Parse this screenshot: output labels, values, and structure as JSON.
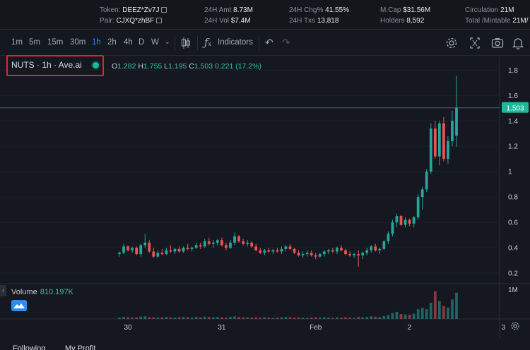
{
  "stats": {
    "token_label": "Token:",
    "token_value": "DEEZ*Zv7J",
    "pair_label": "Pair:",
    "pair_value": "CJXQ*zhBF",
    "amt_label": "24H Amt",
    "amt_value": "8.73M",
    "vol_label": "24H Vol",
    "vol_value": "$7.4M",
    "chg_label": "24H Chg%",
    "chg_value": "41.55%",
    "txs_label": "24H Txs",
    "txs_value": "13,818",
    "mcap_label": "M.Cap",
    "mcap_value": "$31.56M",
    "holders_label": "Holders",
    "holders_value": "8,592",
    "circ_label": "Circulation",
    "circ_value": "21M",
    "total_label": "Total /Mintable",
    "total_value": "21M/"
  },
  "toolbar": {
    "timeframes": [
      "1m",
      "5m",
      "15m",
      "30m",
      "1h",
      "2h",
      "4h",
      "D",
      "W"
    ],
    "active_timeframe": "1h",
    "indicators_label": "Indicators"
  },
  "legend": {
    "title": "NUTS · 1h · Ave.ai",
    "open_label": "O",
    "open": "1.282",
    "high_label": "H",
    "high": "1.755",
    "low_label": "L",
    "low": "1.195",
    "close_label": "C",
    "close": "1.503",
    "change": "0.221 (17.2%)"
  },
  "volume": {
    "label": "Volume",
    "value": "810.197K"
  },
  "tabs": {
    "following": "Following",
    "my_profit": "My Profit"
  },
  "colors": {
    "up": "#26a69a",
    "down": "#ef5350",
    "price_tag": "#1fb89a",
    "accent": "#2f8cf0"
  },
  "chart_data": {
    "type": "candlestick",
    "x_ticks": [
      "30",
      "31",
      "Feb",
      "2",
      "3"
    ],
    "y_ticks": [
      "0.2",
      "0.4",
      "0.6",
      "0.8",
      "1",
      "1.2",
      "1.4",
      "1.6",
      "1.8"
    ],
    "ylim": [
      0.15,
      1.88
    ],
    "last_price": "1.503",
    "volume_ticks": [
      "1M"
    ],
    "candles": [
      [
        0.35,
        0.37,
        0.33,
        0.36
      ],
      [
        0.36,
        0.43,
        0.35,
        0.41
      ],
      [
        0.41,
        0.42,
        0.37,
        0.38
      ],
      [
        0.38,
        0.41,
        0.36,
        0.4
      ],
      [
        0.4,
        0.41,
        0.34,
        0.35
      ],
      [
        0.35,
        0.43,
        0.33,
        0.42
      ],
      [
        0.42,
        0.51,
        0.4,
        0.44
      ],
      [
        0.44,
        0.46,
        0.36,
        0.37
      ],
      [
        0.37,
        0.4,
        0.32,
        0.33
      ],
      [
        0.33,
        0.38,
        0.32,
        0.36
      ],
      [
        0.36,
        0.39,
        0.34,
        0.35
      ],
      [
        0.35,
        0.4,
        0.34,
        0.38
      ],
      [
        0.38,
        0.42,
        0.36,
        0.37
      ],
      [
        0.37,
        0.4,
        0.35,
        0.39
      ],
      [
        0.39,
        0.41,
        0.36,
        0.37
      ],
      [
        0.37,
        0.41,
        0.36,
        0.4
      ],
      [
        0.4,
        0.43,
        0.38,
        0.39
      ],
      [
        0.39,
        0.41,
        0.37,
        0.4
      ],
      [
        0.4,
        0.44,
        0.39,
        0.42
      ],
      [
        0.42,
        0.44,
        0.39,
        0.41
      ],
      [
        0.41,
        0.47,
        0.4,
        0.45
      ],
      [
        0.45,
        0.48,
        0.42,
        0.43
      ],
      [
        0.43,
        0.46,
        0.4,
        0.44
      ],
      [
        0.44,
        0.47,
        0.42,
        0.46
      ],
      [
        0.46,
        0.48,
        0.41,
        0.42
      ],
      [
        0.42,
        0.44,
        0.38,
        0.4
      ],
      [
        0.4,
        0.46,
        0.39,
        0.44
      ],
      [
        0.44,
        0.52,
        0.42,
        0.49
      ],
      [
        0.49,
        0.5,
        0.44,
        0.45
      ],
      [
        0.45,
        0.47,
        0.42,
        0.43
      ],
      [
        0.43,
        0.46,
        0.41,
        0.44
      ],
      [
        0.44,
        0.45,
        0.4,
        0.41
      ],
      [
        0.41,
        0.43,
        0.37,
        0.38
      ],
      [
        0.38,
        0.4,
        0.35,
        0.36
      ],
      [
        0.36,
        0.39,
        0.34,
        0.38
      ],
      [
        0.38,
        0.4,
        0.36,
        0.37
      ],
      [
        0.37,
        0.39,
        0.35,
        0.38
      ],
      [
        0.38,
        0.4,
        0.36,
        0.37
      ],
      [
        0.37,
        0.41,
        0.35,
        0.39
      ],
      [
        0.39,
        0.42,
        0.37,
        0.41
      ],
      [
        0.41,
        0.43,
        0.38,
        0.39
      ],
      [
        0.39,
        0.4,
        0.35,
        0.36
      ],
      [
        0.36,
        0.38,
        0.33,
        0.34
      ],
      [
        0.34,
        0.37,
        0.32,
        0.35
      ],
      [
        0.35,
        0.38,
        0.33,
        0.36
      ],
      [
        0.36,
        0.38,
        0.33,
        0.34
      ],
      [
        0.34,
        0.36,
        0.31,
        0.33
      ],
      [
        0.33,
        0.36,
        0.32,
        0.35
      ],
      [
        0.35,
        0.38,
        0.33,
        0.37
      ],
      [
        0.37,
        0.39,
        0.35,
        0.38
      ],
      [
        0.38,
        0.4,
        0.36,
        0.37
      ],
      [
        0.37,
        0.41,
        0.35,
        0.4
      ],
      [
        0.4,
        0.42,
        0.37,
        0.38
      ],
      [
        0.38,
        0.39,
        0.34,
        0.35
      ],
      [
        0.35,
        0.37,
        0.33,
        0.34
      ],
      [
        0.34,
        0.36,
        0.32,
        0.35
      ],
      [
        0.35,
        0.38,
        0.25,
        0.34
      ],
      [
        0.34,
        0.37,
        0.31,
        0.36
      ],
      [
        0.36,
        0.4,
        0.34,
        0.38
      ],
      [
        0.38,
        0.42,
        0.36,
        0.41
      ],
      [
        0.41,
        0.43,
        0.37,
        0.38
      ],
      [
        0.38,
        0.4,
        0.35,
        0.39
      ],
      [
        0.39,
        0.46,
        0.38,
        0.45
      ],
      [
        0.45,
        0.53,
        0.43,
        0.51
      ],
      [
        0.51,
        0.62,
        0.49,
        0.6
      ],
      [
        0.6,
        0.67,
        0.56,
        0.65
      ],
      [
        0.65,
        0.66,
        0.57,
        0.58
      ],
      [
        0.58,
        0.64,
        0.56,
        0.62
      ],
      [
        0.62,
        0.63,
        0.57,
        0.59
      ],
      [
        0.59,
        0.65,
        0.56,
        0.64
      ],
      [
        0.64,
        0.82,
        0.62,
        0.8
      ],
      [
        0.8,
        0.88,
        0.7,
        0.86
      ],
      [
        0.86,
        1.02,
        0.84,
        1.0
      ],
      [
        1.0,
        1.38,
        0.98,
        1.34
      ],
      [
        1.34,
        1.4,
        1.1,
        1.12
      ],
      [
        1.12,
        1.4,
        1.05,
        1.38
      ],
      [
        1.38,
        1.43,
        1.08,
        1.1
      ],
      [
        1.1,
        1.28,
        1.06,
        1.24
      ],
      [
        1.24,
        1.48,
        1.2,
        1.4
      ],
      [
        1.282,
        1.755,
        1.195,
        1.503
      ]
    ],
    "volumes": [
      0.04,
      0.06,
      0.05,
      0.04,
      0.05,
      0.07,
      0.08,
      0.06,
      0.05,
      0.04,
      0.05,
      0.06,
      0.05,
      0.04,
      0.05,
      0.06,
      0.05,
      0.04,
      0.06,
      0.05,
      0.07,
      0.06,
      0.05,
      0.06,
      0.05,
      0.04,
      0.06,
      0.08,
      0.06,
      0.05,
      0.05,
      0.04,
      0.05,
      0.04,
      0.05,
      0.04,
      0.03,
      0.04,
      0.05,
      0.06,
      0.05,
      0.04,
      0.05,
      0.04,
      0.03,
      0.04,
      0.05,
      0.04,
      0.05,
      0.04,
      0.03,
      0.05,
      0.04,
      0.05,
      0.04,
      0.03,
      0.06,
      0.05,
      0.06,
      0.08,
      0.07,
      0.06,
      0.09,
      0.12,
      0.18,
      0.22,
      0.15,
      0.14,
      0.13,
      0.16,
      0.3,
      0.34,
      0.3,
      0.5,
      0.85,
      0.55,
      0.4,
      0.35,
      0.6,
      0.81
    ]
  }
}
